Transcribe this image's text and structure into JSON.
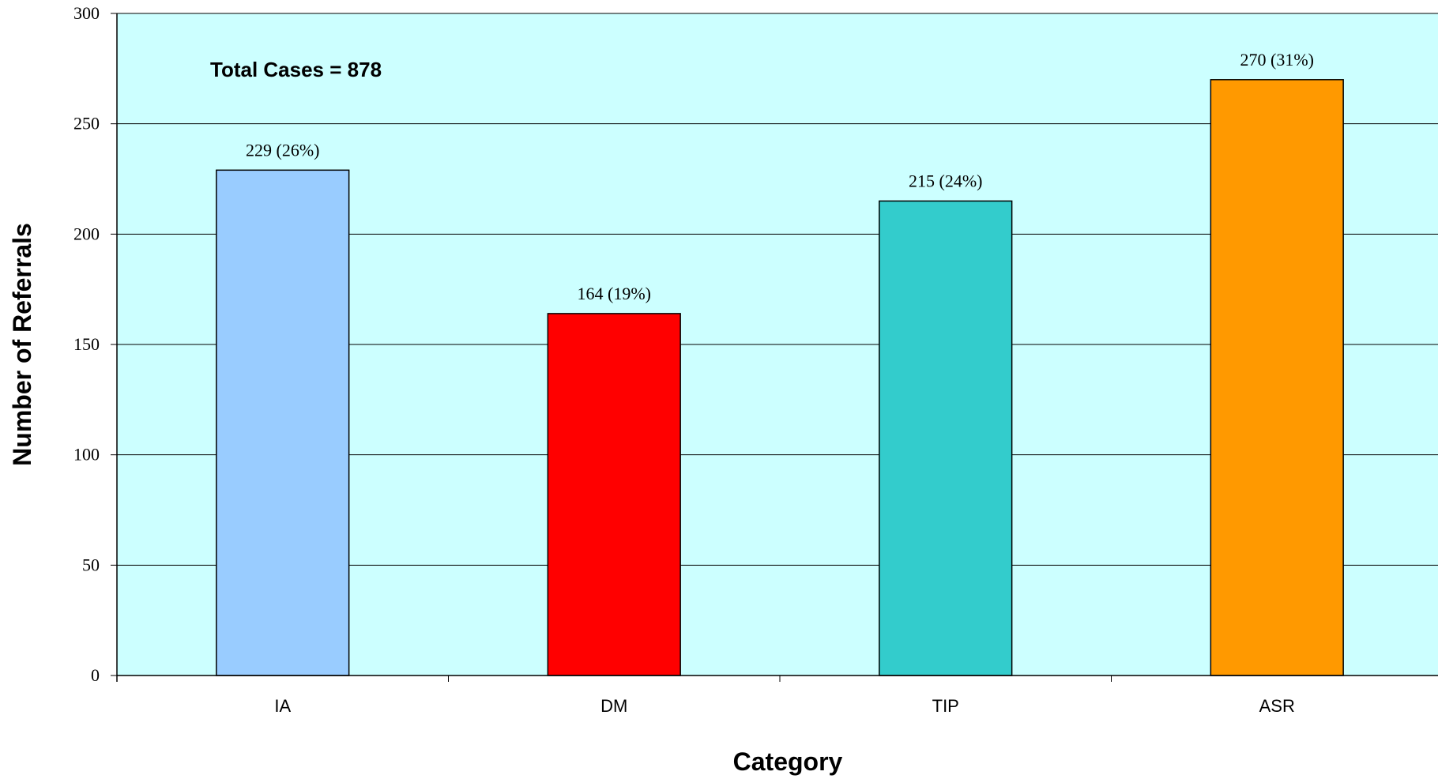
{
  "chart_data": {
    "type": "bar",
    "categories": [
      "IA",
      "DM",
      "TIP",
      "ASR"
    ],
    "values": [
      229,
      164,
      215,
      270
    ],
    "data_labels": [
      "229 (26%)",
      "164 (19%)",
      "215 (24%)",
      "270 (31%)"
    ],
    "bar_colors": [
      "#99CCFF",
      "#FF0000",
      "#33CCCC",
      "#FF9900"
    ],
    "plot_background": "#CCFFFF",
    "xlabel": "Category",
    "ylabel": "Number of Referrals",
    "ylim": [
      0,
      300
    ],
    "yticks": [
      0,
      50,
      100,
      150,
      200,
      250,
      300
    ],
    "grid": true,
    "legend": "none",
    "annotation": "Total Cases = 878"
  }
}
